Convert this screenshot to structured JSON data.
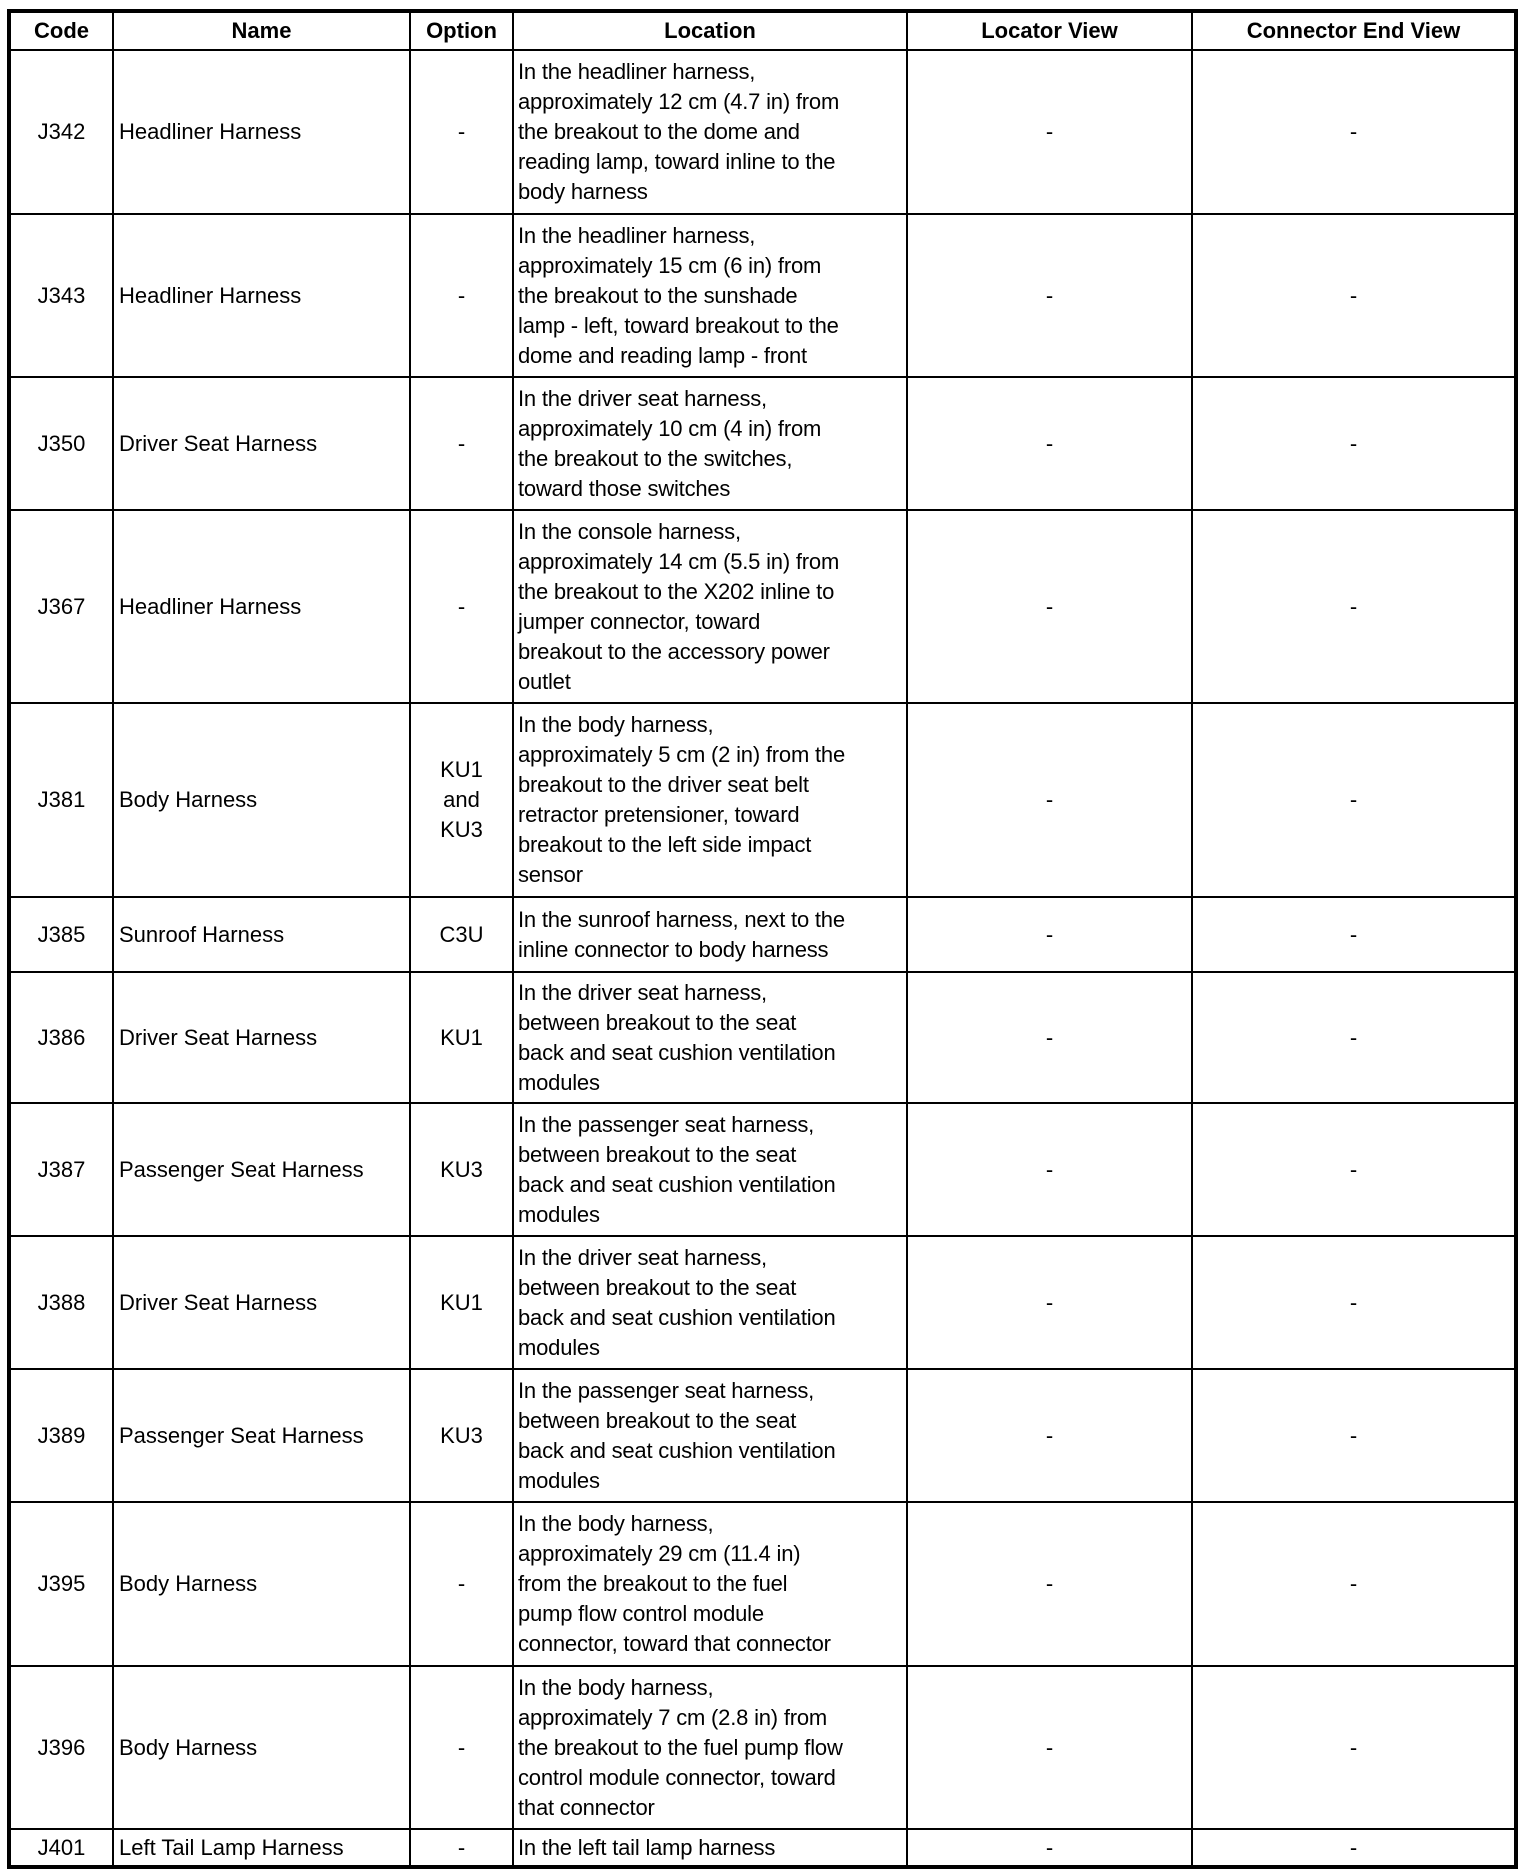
{
  "table": {
    "headers": [
      "Code",
      "Name",
      "Option",
      "Location",
      "Locator View",
      "Connector End View"
    ],
    "rows": [
      {
        "code": "J342",
        "name": "Headliner Harness",
        "option": "-",
        "location": "In the headliner harness,\napproximately 12 cm (4.7 in) from\nthe breakout to the dome and\nreading lamp, toward inline to the\nbody harness",
        "locator_view": "-",
        "connector_end_view": "-"
      },
      {
        "code": "J343",
        "name": "Headliner Harness",
        "option": "-",
        "location": "In the headliner harness,\napproximately 15 cm (6 in) from\nthe breakout to the sunshade\nlamp - left, toward breakout to the\ndome and reading lamp - front",
        "locator_view": "-",
        "connector_end_view": "-"
      },
      {
        "code": "J350",
        "name": "Driver Seat Harness",
        "option": "-",
        "location": "In the driver seat harness,\napproximately 10 cm (4 in) from\nthe breakout to the switches,\ntoward those switches",
        "locator_view": "-",
        "connector_end_view": "-"
      },
      {
        "code": "J367",
        "name": "Headliner Harness",
        "option": "-",
        "location": "In the console harness,\napproximately 14 cm (5.5 in) from\nthe breakout to the X202 inline to\njumper connector, toward\nbreakout to the accessory power\noutlet",
        "locator_view": "-",
        "connector_end_view": "-"
      },
      {
        "code": "J381",
        "name": "Body Harness",
        "option": "KU1\nand\nKU3",
        "location": "In the body harness,\napproximately 5 cm (2 in) from the\nbreakout to the driver seat belt\nretractor pretensioner, toward\nbreakout to the left side impact\nsensor",
        "locator_view": "-",
        "connector_end_view": "-"
      },
      {
        "code": "J385",
        "name": "Sunroof Harness",
        "option": "C3U",
        "location": "In the sunroof harness, next to the\ninline connector to body harness",
        "locator_view": "-",
        "connector_end_view": "-"
      },
      {
        "code": "J386",
        "name": "Driver Seat Harness",
        "option": "KU1",
        "location": "In the driver seat harness,\nbetween breakout to the seat\nback and seat cushion ventilation\nmodules",
        "locator_view": "-",
        "connector_end_view": "-"
      },
      {
        "code": "J387",
        "name": "Passenger Seat Harness",
        "option": "KU3",
        "location": "In the passenger seat harness,\nbetween breakout to the seat\nback and seat cushion ventilation\nmodules",
        "locator_view": "-",
        "connector_end_view": "-"
      },
      {
        "code": "J388",
        "name": "Driver Seat Harness",
        "option": "KU1",
        "location": "In the driver seat harness,\nbetween breakout to the seat\nback and seat cushion ventilation\nmodules",
        "locator_view": "-",
        "connector_end_view": "-"
      },
      {
        "code": "J389",
        "name": "Passenger Seat Harness",
        "option": "KU3",
        "location": "In the passenger seat harness,\nbetween breakout to the seat\nback and seat cushion ventilation\nmodules",
        "locator_view": "-",
        "connector_end_view": "-"
      },
      {
        "code": "J395",
        "name": "Body Harness",
        "option": "-",
        "location": "In the body harness,\napproximately 29 cm (11.4 in)\nfrom the breakout to the fuel\npump flow control module\nconnector, toward that connector",
        "locator_view": "-",
        "connector_end_view": "-"
      },
      {
        "code": "J396",
        "name": "Body Harness",
        "option": "-",
        "location": "In the body harness,\napproximately 7 cm (2.8 in) from\nthe breakout to the fuel pump flow\ncontrol module connector, toward\nthat connector",
        "locator_view": "-",
        "connector_end_view": "-"
      },
      {
        "code": "J401",
        "name": "Left Tail Lamp Harness",
        "option": "-",
        "location": "In the left tail lamp harness",
        "locator_view": "-",
        "connector_end_view": "-"
      }
    ]
  }
}
